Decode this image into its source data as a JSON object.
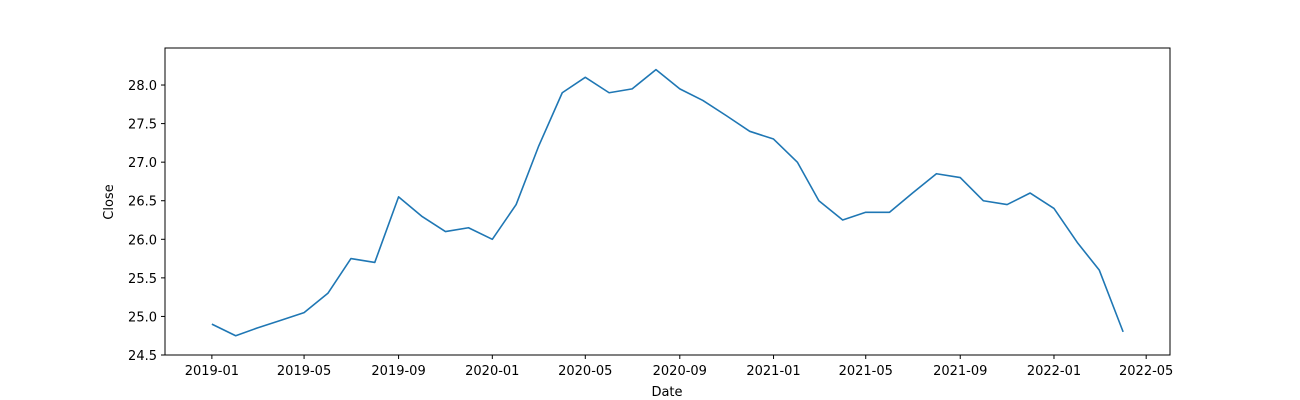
{
  "chart_data": {
    "type": "line",
    "x_label": "Date",
    "y_label": "Close",
    "x": [
      "2019-01",
      "2019-02",
      "2019-03",
      "2019-04",
      "2019-05",
      "2019-06",
      "2019-07",
      "2019-08",
      "2019-09",
      "2019-10",
      "2019-11",
      "2019-12",
      "2020-01",
      "2020-02",
      "2020-03",
      "2020-04",
      "2020-05",
      "2020-06",
      "2020-07",
      "2020-08",
      "2020-09",
      "2020-10",
      "2020-11",
      "2020-12",
      "2021-01",
      "2021-02",
      "2021-03",
      "2021-04",
      "2021-05",
      "2021-06",
      "2021-07",
      "2021-08",
      "2021-09",
      "2021-10",
      "2021-11",
      "2021-12",
      "2022-01",
      "2022-02",
      "2022-03",
      "2022-04"
    ],
    "series": [
      {
        "name": "Close",
        "color": "#1f77b4",
        "values": [
          24.9,
          24.75,
          24.85,
          24.95,
          25.05,
          25.3,
          25.75,
          25.7,
          26.55,
          26.3,
          26.1,
          26.15,
          26.0,
          26.45,
          27.2,
          27.9,
          28.1,
          27.9,
          27.95,
          28.2,
          27.95,
          27.8,
          27.6,
          27.4,
          27.3,
          27.0,
          26.5,
          26.25,
          26.35,
          26.35,
          26.6,
          26.85,
          26.8,
          26.5,
          26.45,
          26.6,
          26.4,
          25.95,
          25.6,
          24.8
        ]
      }
    ],
    "xlim": [
      "2018-11",
      "2022-06"
    ],
    "xticks": [
      "2019-01",
      "2019-05",
      "2019-09",
      "2020-01",
      "2020-05",
      "2020-09",
      "2021-01",
      "2021-05",
      "2021-09",
      "2022-01",
      "2022-05"
    ],
    "ylim": [
      24.5,
      28.48
    ],
    "yticks": [
      24.5,
      {
        "value": 25,
        "label": "25.0"
      },
      25.5,
      {
        "value": 26,
        "label": "26.0"
      },
      26.5,
      {
        "value": 27,
        "label": "27.0"
      },
      27.5,
      {
        "value": 28,
        "label": "28.0"
      }
    ],
    "grid": false
  }
}
